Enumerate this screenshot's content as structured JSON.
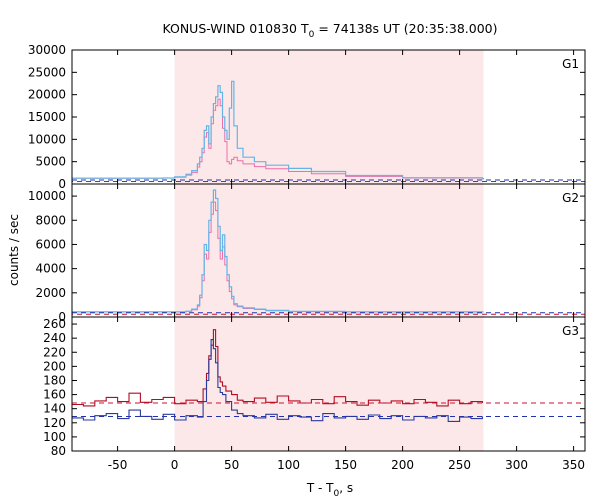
{
  "chart_data": {
    "type": "line",
    "title": "KONUS-WIND 010830 T",
    "title_sub": "0",
    "title_rest": " = 74138s UT (20:35:38.000)",
    "xlabel_main": "T - T",
    "xlabel_sub": "0",
    "xlabel_rest": ", s",
    "ylabel": "counts / sec",
    "xlim": [
      -90,
      360
    ],
    "xticks": [
      -50,
      0,
      50,
      100,
      150,
      200,
      250,
      300,
      350
    ],
    "highlight_interval": [
      0,
      271
    ],
    "colors": {
      "highlight": "#fde8e9",
      "blue_curve": "#63b5e8",
      "pink_curve": "#ea6fa8",
      "blue_dashed": "#2233aa",
      "red_dashed": "#cc1133",
      "g3_red": "#b00d22",
      "g3_blue": "#2a3a9e"
    },
    "panels": [
      {
        "name": "G1",
        "ylim": [
          0,
          30000
        ],
        "yticks": [
          0,
          5000,
          10000,
          15000,
          20000,
          25000,
          30000
        ],
        "background_level": 900,
        "blue_curve": {
          "x": [
            -90,
            -10,
            0,
            10,
            15,
            20,
            22,
            24,
            26,
            28,
            30,
            32,
            34,
            36,
            38,
            40,
            42,
            44,
            46,
            48,
            50,
            52,
            55,
            60,
            70,
            80,
            100,
            120,
            150,
            200,
            270,
            271
          ],
          "y": [
            1300,
            1350,
            1600,
            2200,
            3000,
            4500,
            6000,
            8000,
            12000,
            13000,
            9000,
            15000,
            18000,
            19500,
            22000,
            20500,
            15000,
            12000,
            10000,
            17000,
            23000,
            13000,
            8000,
            6000,
            5000,
            4200,
            3500,
            2800,
            1900,
            1400,
            1200,
            1100
          ]
        },
        "pink_curve": {
          "x": [
            -90,
            -10,
            0,
            10,
            15,
            20,
            22,
            24,
            26,
            28,
            30,
            32,
            34,
            36,
            38,
            40,
            42,
            44,
            46,
            48,
            50,
            52,
            55,
            60,
            70,
            80,
            100,
            120,
            150,
            200,
            270,
            271
          ],
          "y": [
            1300,
            1350,
            1500,
            2000,
            2600,
            3800,
            5000,
            7000,
            10500,
            11500,
            8000,
            13500,
            16500,
            17500,
            19000,
            17500,
            12500,
            9500,
            5000,
            4500,
            5500,
            6000,
            5200,
            4500,
            3900,
            3400,
            2800,
            2300,
            1700,
            1350,
            1150,
            1100
          ]
        }
      },
      {
        "name": "G2",
        "ylim": [
          0,
          11000
        ],
        "yticks": [
          0,
          2000,
          4000,
          6000,
          8000,
          10000
        ],
        "background_level": 350,
        "blue_curve": {
          "x": [
            -90,
            0,
            10,
            15,
            20,
            22,
            24,
            26,
            28,
            30,
            32,
            34,
            36,
            38,
            40,
            42,
            44,
            46,
            48,
            50,
            52,
            55,
            60,
            70,
            80,
            100,
            150,
            200,
            270,
            271
          ],
          "y": [
            420,
            420,
            480,
            650,
            1000,
            1800,
            3500,
            6000,
            5500,
            8000,
            9500,
            10500,
            9800,
            7500,
            5500,
            6800,
            5000,
            3500,
            2500,
            1700,
            1100,
            900,
            750,
            650,
            550,
            470,
            430,
            420,
            420,
            420
          ]
        },
        "pink_curve": {
          "x": [
            -90,
            0,
            10,
            15,
            20,
            22,
            24,
            26,
            28,
            30,
            32,
            34,
            36,
            38,
            40,
            42,
            44,
            46,
            48,
            50,
            52,
            55,
            60,
            70,
            80,
            100,
            150,
            200,
            270,
            271
          ],
          "y": [
            420,
            420,
            460,
            600,
            900,
            1600,
            3000,
            5200,
            4800,
            7000,
            8500,
            9500,
            8800,
            6500,
            4800,
            5800,
            4300,
            3000,
            2100,
            1500,
            1000,
            850,
            700,
            620,
            520,
            450,
            420,
            420,
            420,
            420
          ]
        }
      },
      {
        "name": "G3",
        "ylim": [
          80,
          270
        ],
        "yticks": [
          80,
          100,
          120,
          140,
          160,
          180,
          200,
          220,
          240,
          260
        ],
        "red_background_level": 148,
        "blue_background_level": 129,
        "red_curve": {
          "x": [
            -90,
            -80,
            -70,
            -60,
            -50,
            -40,
            -30,
            -20,
            -10,
            0,
            10,
            20,
            25,
            28,
            30,
            32,
            34,
            36,
            38,
            40,
            42,
            45,
            50,
            55,
            60,
            70,
            80,
            90,
            100,
            110,
            120,
            130,
            140,
            150,
            160,
            170,
            180,
            190,
            200,
            210,
            220,
            230,
            240,
            250,
            260,
            270
          ],
          "y": [
            146,
            144,
            151,
            156,
            150,
            162,
            149,
            153,
            156,
            147,
            152,
            150,
            168,
            190,
            215,
            230,
            252,
            228,
            185,
            178,
            172,
            165,
            160,
            152,
            150,
            155,
            149,
            158,
            151,
            148,
            153,
            147,
            157,
            150,
            145,
            152,
            148,
            151,
            147,
            153,
            149,
            144,
            152,
            147,
            150,
            148
          ]
        },
        "blue_curve": {
          "x": [
            -90,
            -80,
            -70,
            -60,
            -50,
            -40,
            -30,
            -20,
            -10,
            0,
            10,
            20,
            25,
            28,
            30,
            32,
            34,
            36,
            38,
            40,
            42,
            45,
            50,
            55,
            60,
            70,
            80,
            90,
            100,
            110,
            120,
            130,
            140,
            150,
            160,
            170,
            180,
            190,
            200,
            210,
            220,
            230,
            240,
            250,
            260,
            270
          ],
          "y": [
            127,
            124,
            130,
            133,
            126,
            138,
            129,
            125,
            132,
            124,
            130,
            128,
            150,
            180,
            210,
            238,
            225,
            205,
            170,
            163,
            160,
            150,
            138,
            133,
            130,
            127,
            132,
            125,
            130,
            128,
            123,
            133,
            127,
            129,
            125,
            131,
            126,
            130,
            124,
            129,
            127,
            130,
            122,
            128,
            126,
            129
          ]
        }
      }
    ]
  }
}
